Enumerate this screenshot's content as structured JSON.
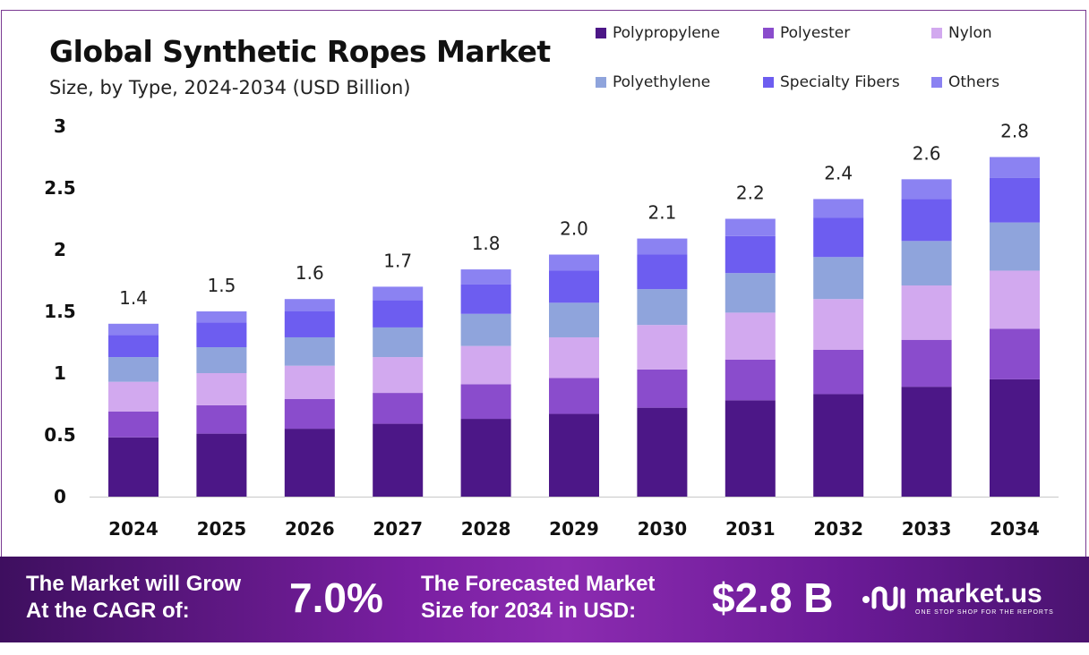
{
  "header": {
    "title": "Global Synthetic Ropes Market",
    "subtitle": "Size, by Type, 2024-2034 (USD Billion)"
  },
  "legend": [
    {
      "label": "Polypropylene",
      "color": "#4c1787"
    },
    {
      "label": "Polyester",
      "color": "#8a4ccc"
    },
    {
      "label": "Nylon",
      "color": "#d2a9ef"
    },
    {
      "label": "Polyethylene",
      "color": "#8fa4dc"
    },
    {
      "label": "Specialty Fibers",
      "color": "#6d5df0"
    },
    {
      "label": "Others",
      "color": "#8b82f2"
    }
  ],
  "chart_data": {
    "type": "bar",
    "stacked": true,
    "categories": [
      "2024",
      "2025",
      "2026",
      "2027",
      "2028",
      "2029",
      "2030",
      "2031",
      "2032",
      "2033",
      "2034"
    ],
    "series": [
      {
        "name": "Polypropylene",
        "values": [
          0.48,
          0.51,
          0.55,
          0.59,
          0.63,
          0.67,
          0.72,
          0.78,
          0.83,
          0.89,
          0.95
        ]
      },
      {
        "name": "Polyester",
        "values": [
          0.21,
          0.23,
          0.24,
          0.25,
          0.28,
          0.29,
          0.31,
          0.33,
          0.36,
          0.38,
          0.41
        ]
      },
      {
        "name": "Nylon",
        "values": [
          0.24,
          0.26,
          0.27,
          0.29,
          0.31,
          0.33,
          0.36,
          0.38,
          0.41,
          0.44,
          0.47
        ]
      },
      {
        "name": "Polyethylene",
        "values": [
          0.2,
          0.21,
          0.23,
          0.24,
          0.26,
          0.28,
          0.29,
          0.32,
          0.34,
          0.36,
          0.39
        ]
      },
      {
        "name": "Specialty Fibers",
        "values": [
          0.18,
          0.2,
          0.21,
          0.22,
          0.24,
          0.26,
          0.28,
          0.3,
          0.32,
          0.34,
          0.36
        ]
      },
      {
        "name": "Others",
        "values": [
          0.09,
          0.09,
          0.1,
          0.11,
          0.12,
          0.13,
          0.13,
          0.14,
          0.15,
          0.16,
          0.17
        ]
      }
    ],
    "totals_labels": [
      "1.4",
      "1.5",
      "1.6",
      "1.7",
      "1.8",
      "2.0",
      "2.1",
      "2.2",
      "2.4",
      "2.6",
      "2.8"
    ],
    "yticks": [
      "0",
      "0.5",
      "1",
      "1.5",
      "2",
      "2.5",
      "3"
    ],
    "ylim": [
      0,
      3
    ],
    "grid": false
  },
  "footer": {
    "cagr_text_line1": "The Market will Grow",
    "cagr_text_line2": "At the CAGR of:",
    "cagr_value": "7.0%",
    "forecast_text_line1": "The Forecasted Market",
    "forecast_text_line2": "Size for 2034 in USD:",
    "forecast_value": "$2.8 B",
    "brand_name": "market.us",
    "brand_tagline": "ONE STOP SHOP FOR THE REPORTS"
  }
}
